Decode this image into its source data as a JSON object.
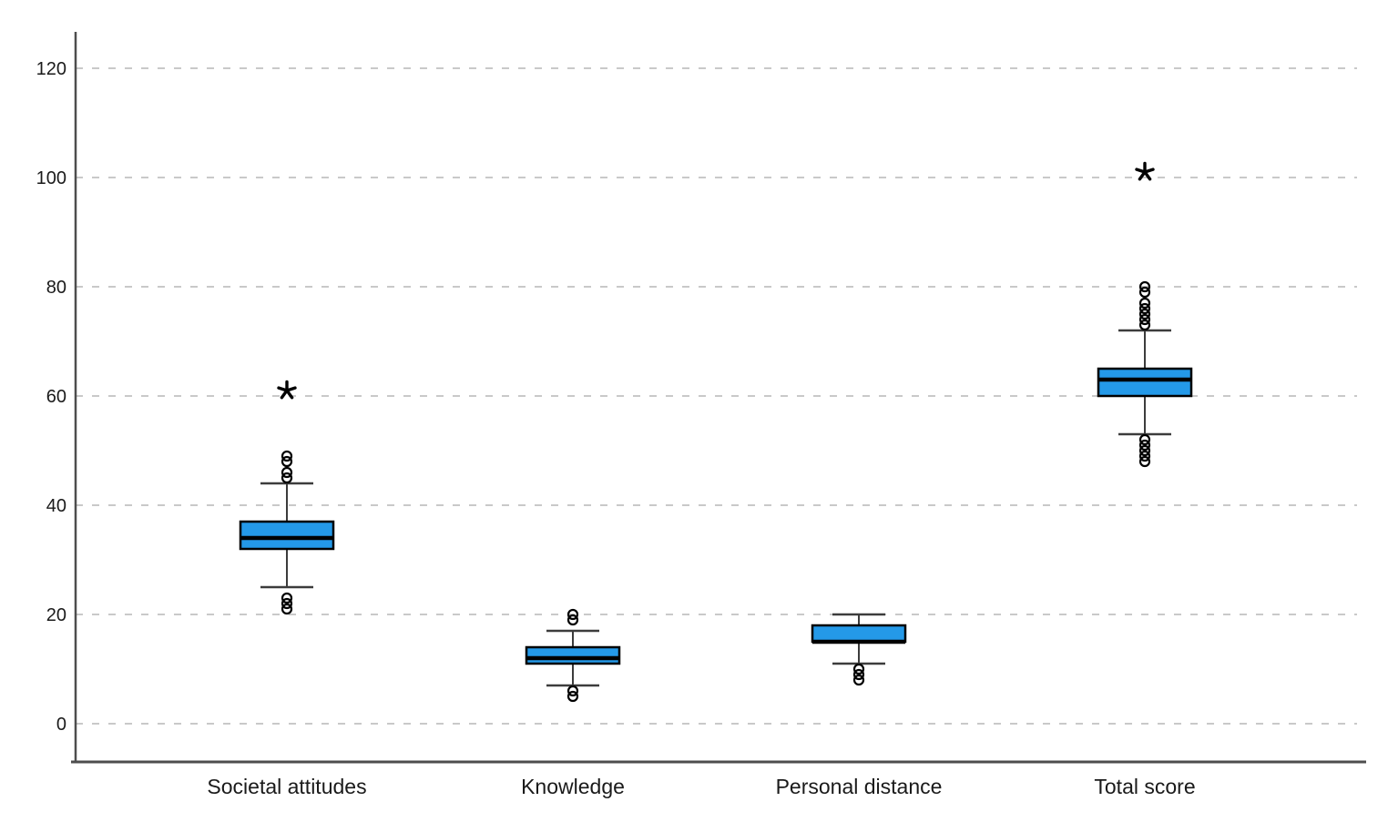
{
  "chart_data": {
    "type": "boxplot",
    "title": "",
    "xlabel": "",
    "ylabel": "",
    "categories": [
      "Societal attitudes",
      "Knowledge",
      "Personal distance",
      "Total score"
    ],
    "yticks": [
      0,
      20,
      40,
      60,
      80,
      100,
      120
    ],
    "ylim": [
      -7,
      127
    ],
    "grid": "horizontal-dashed",
    "legend": "none",
    "series": [
      {
        "category": "Societal attitudes",
        "q1": 32,
        "median": 34,
        "q3": 37,
        "whisker_low": 25,
        "whisker_high": 44,
        "outliers": [
          49,
          48,
          46,
          45,
          23,
          22,
          21
        ],
        "extremes": [
          61
        ]
      },
      {
        "category": "Knowledge",
        "q1": 11,
        "median": 12,
        "q3": 14,
        "whisker_low": 7,
        "whisker_high": 17,
        "outliers": [
          20,
          19,
          6,
          5
        ],
        "extremes": []
      },
      {
        "category": "Personal distance",
        "q1": 15,
        "median": 15,
        "q3": 18,
        "whisker_low": 11,
        "whisker_high": 20,
        "outliers": [
          10,
          9,
          8
        ],
        "extremes": []
      },
      {
        "category": "Total score",
        "q1": 60,
        "median": 63,
        "q3": 65,
        "whisker_low": 53,
        "whisker_high": 72,
        "outliers": [
          80,
          79,
          77,
          76,
          75,
          74,
          73,
          52,
          51,
          50,
          49,
          48
        ],
        "extremes": [
          101
        ]
      }
    ],
    "colors": {
      "box_fill": "#2499E8",
      "box_border": "#000000",
      "median": "#000000",
      "whisker": "#3c3c3c",
      "grid": "#c9c9c9",
      "axis": "#4d4d4d",
      "outlier_stroke": "#000000",
      "extreme_marker": "#000000",
      "background": "#ffffff"
    }
  }
}
